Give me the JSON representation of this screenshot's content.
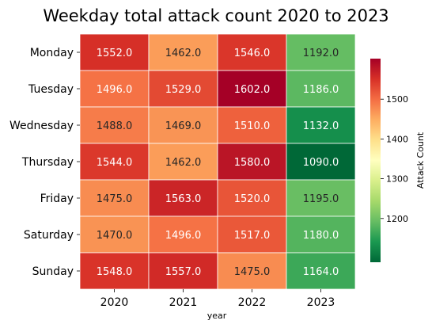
{
  "chart_data": {
    "type": "heatmap",
    "title": "Weekday total attack count 2020 to 2023",
    "xlabel": "year",
    "ylabel": "",
    "x": [
      "2020",
      "2021",
      "2022",
      "2023"
    ],
    "y": [
      "Monday",
      "Tuesday",
      "Wednesday",
      "Thursday",
      "Friday",
      "Saturday",
      "Sunday"
    ],
    "values": [
      [
        1552.0,
        1462.0,
        1546.0,
        1192.0
      ],
      [
        1496.0,
        1529.0,
        1602.0,
        1186.0
      ],
      [
        1488.0,
        1469.0,
        1510.0,
        1132.0
      ],
      [
        1544.0,
        1462.0,
        1580.0,
        1090.0
      ],
      [
        1475.0,
        1563.0,
        1520.0,
        1195.0
      ],
      [
        1470.0,
        1496.0,
        1517.0,
        1180.0
      ],
      [
        1548.0,
        1557.0,
        1475.0,
        1164.0
      ]
    ],
    "value_format": "0.0",
    "colormap": "RdYlGn_r",
    "vmin": 1090,
    "vmax": 1602,
    "colorbar": {
      "label": "Attack Count",
      "ticks": [
        1200,
        1300,
        1400,
        1500
      ]
    },
    "annotations": true,
    "grid": false
  }
}
